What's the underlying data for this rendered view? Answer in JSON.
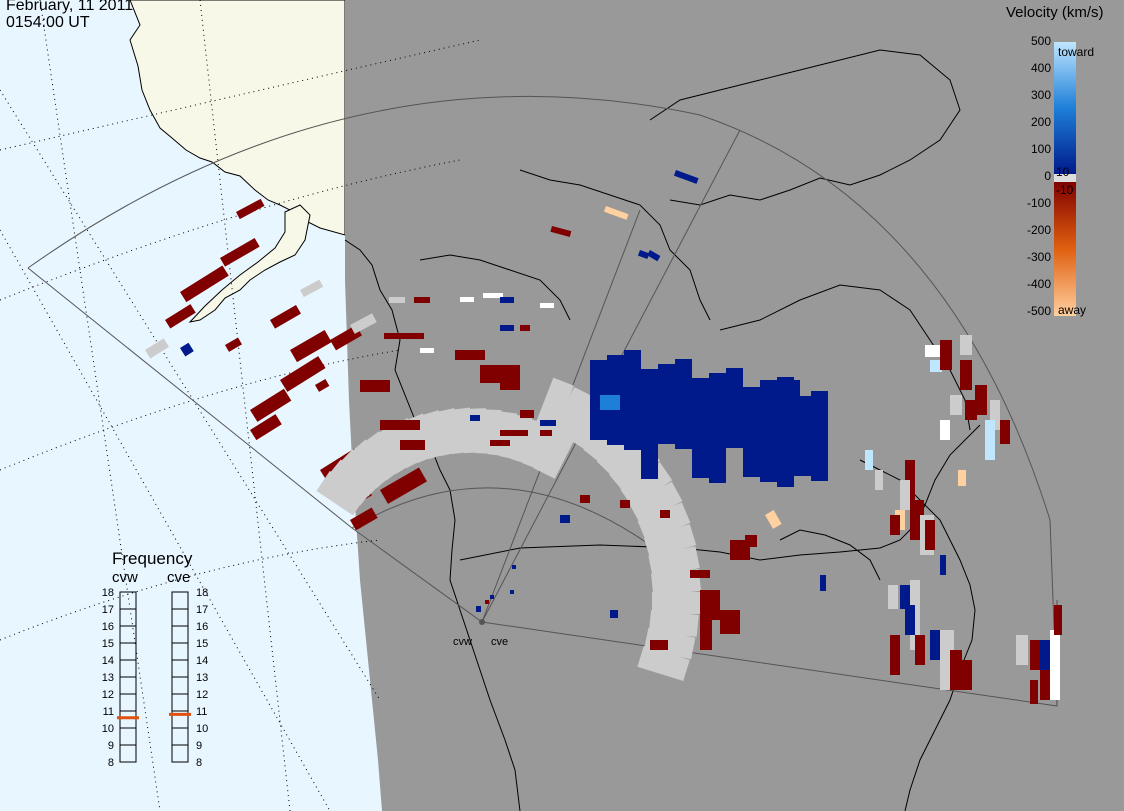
{
  "title": {
    "date": "February, 11 2011",
    "time": "0154:00 UT"
  },
  "colors": {
    "ocean": "#e8f6ff",
    "land_day": "#f8f8e8",
    "night": "#999999",
    "ground_scatter": "#cccccc",
    "toward_max": "#bfe6ff",
    "toward_mid": "#1e7fd8",
    "toward_min": "#001a8c",
    "away_min": "#800000",
    "away_mid": "#e06010",
    "away_max": "#ffd0a0",
    "freq_marker": "#e05010"
  },
  "velocity_scale": {
    "title": "Velocity (km/s)",
    "labels": [
      "500",
      "400",
      "300",
      "200",
      "100",
      "10",
      "0",
      "-10",
      "-100",
      "-200",
      "-300",
      "-400",
      "-500"
    ],
    "toward_label": "toward",
    "away_label": "away"
  },
  "frequency": {
    "title": "Frequency",
    "radars": [
      "cvw",
      "cve"
    ],
    "ticks": [
      "18",
      "17",
      "16",
      "15",
      "14",
      "13",
      "12",
      "11",
      "10",
      "9",
      "8"
    ],
    "values_mhz": [
      10.6,
      10.8
    ]
  },
  "radars": [
    {
      "code": "cvw",
      "label": "cvw"
    },
    {
      "code": "cve",
      "label": "cve"
    }
  ]
}
